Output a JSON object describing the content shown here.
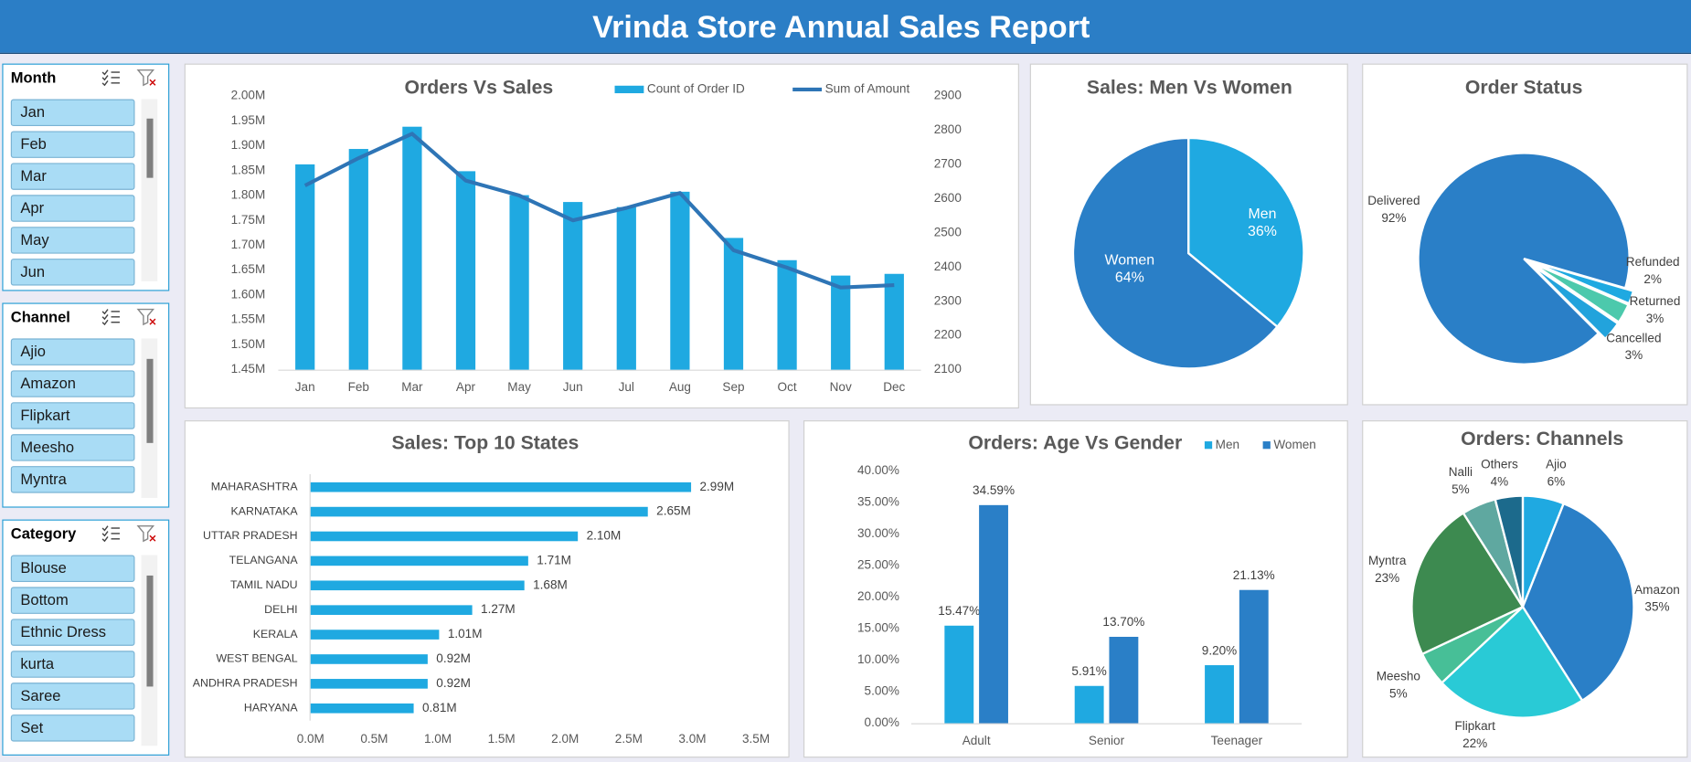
{
  "header": {
    "title": "Vrinda Store Annual Sales Report"
  },
  "slicers": [
    {
      "title": "Month",
      "items": [
        "Jan",
        "Feb",
        "Mar",
        "Apr",
        "May",
        "Jun"
      ]
    },
    {
      "title": "Channel",
      "items": [
        "Ajio",
        "Amazon",
        "Flipkart",
        "Meesho",
        "Myntra"
      ]
    },
    {
      "title": "Category",
      "items": [
        "Blouse",
        "Bottom",
        "Ethnic Dress",
        "kurta",
        "Saree",
        "Set"
      ]
    }
  ],
  "chart_data": [
    {
      "type": "combo",
      "title": "Orders Vs Sales",
      "categories": [
        "Jan",
        "Feb",
        "Mar",
        "Apr",
        "May",
        "Jun",
        "Jul",
        "Aug",
        "Sep",
        "Oct",
        "Nov",
        "Dec"
      ],
      "series": [
        {
          "name": "Count of Order ID",
          "type": "bar",
          "axis": "y2",
          "color": "#1fa9e1",
          "values": [
            2700,
            2745,
            2810,
            2680,
            2610,
            2590,
            2575,
            2620,
            2485,
            2420,
            2375,
            2380
          ]
        },
        {
          "name": "Sum of Amount",
          "type": "line",
          "color": "#2e75b6",
          "values": [
            1820000,
            1875000,
            1924000,
            1830000,
            1800000,
            1750000,
            1775000,
            1805000,
            1690000,
            1655000,
            1615000,
            1620000
          ]
        }
      ],
      "ylim": [
        1450000,
        2000000
      ],
      "yticks": [
        {
          "value": 1450000,
          "label": "1.45M"
        },
        {
          "value": 1500000,
          "label": "1.50M"
        },
        {
          "value": 1550000,
          "label": "1.55M"
        },
        {
          "value": 1600000,
          "label": "1.60M"
        },
        {
          "value": 1650000,
          "label": "1.65M"
        },
        {
          "value": 1700000,
          "label": "1.70M"
        },
        {
          "value": 1750000,
          "label": "1.75M"
        },
        {
          "value": 1800000,
          "label": "1.80M"
        },
        {
          "value": 1850000,
          "label": "1.85M"
        },
        {
          "value": 1900000,
          "label": "1.90M"
        },
        {
          "value": 1950000,
          "label": "1.95M"
        },
        {
          "value": 2000000,
          "label": "2.00M"
        }
      ],
      "y2lim": [
        2100,
        2900
      ],
      "y2ticks": [
        2100,
        2200,
        2300,
        2400,
        2500,
        2600,
        2700,
        2800,
        2900
      ]
    },
    {
      "type": "pie",
      "title": "Sales: Men Vs Women",
      "categories": [
        "Men",
        "Women"
      ],
      "values": [
        36,
        64
      ],
      "value_labels": [
        "36%",
        "64%"
      ],
      "colors": [
        "#1fa9e1",
        "#2a7fc7"
      ]
    },
    {
      "type": "pie",
      "title": "Order Status",
      "categories": [
        "Delivered",
        "Refunded",
        "Returned",
        "Cancelled"
      ],
      "values": [
        92,
        2,
        3,
        3
      ],
      "value_labels": [
        "92%",
        "2%",
        "3%",
        "3%"
      ],
      "colors": [
        "#2a7fc7",
        "#1fa9e1",
        "#4cc9ac",
        "#22a3dc"
      ]
    },
    {
      "type": "hbar",
      "title": "Sales: Top 10 States",
      "categories": [
        "MAHARASHTRA",
        "KARNATAKA",
        "UTTAR PRADESH",
        "TELANGANA",
        "TAMIL NADU",
        "DELHI",
        "KERALA",
        "WEST BENGAL",
        "ANDHRA PRADESH",
        "HARYANA"
      ],
      "values": [
        2990000,
        2650000,
        2100000,
        1710000,
        1680000,
        1270000,
        1010000,
        920000,
        920000,
        810000
      ],
      "value_labels": [
        "2.99M",
        "2.65M",
        "2.10M",
        "1.71M",
        "1.68M",
        "1.27M",
        "1.01M",
        "0.92M",
        "0.92M",
        "0.81M"
      ],
      "color": "#1fa9e1",
      "xlim": [
        0,
        3500000
      ],
      "xticks": [
        {
          "value": 0,
          "label": "0.0M"
        },
        {
          "value": 500000,
          "label": "0.5M"
        },
        {
          "value": 1000000,
          "label": "1.0M"
        },
        {
          "value": 1500000,
          "label": "1.5M"
        },
        {
          "value": 2000000,
          "label": "2.0M"
        },
        {
          "value": 2500000,
          "label": "2.5M"
        },
        {
          "value": 3000000,
          "label": "3.0M"
        },
        {
          "value": 3500000,
          "label": "3.5M"
        }
      ]
    },
    {
      "type": "bar",
      "title": "Orders: Age Vs Gender",
      "categories": [
        "Adult",
        "Senior",
        "Teenager"
      ],
      "series": [
        {
          "name": "Men",
          "color": "#1fa9e1",
          "values": [
            15.47,
            5.91,
            9.2
          ],
          "value_labels": [
            "15.47%",
            "5.91%",
            "9.20%"
          ]
        },
        {
          "name": "Women",
          "color": "#2a7fc7",
          "values": [
            34.59,
            13.7,
            21.13
          ],
          "value_labels": [
            "34.59%",
            "13.70%",
            "21.13%"
          ]
        }
      ],
      "ylim": [
        0,
        40
      ],
      "yticks": [
        {
          "value": 0,
          "label": "0.00%"
        },
        {
          "value": 5,
          "label": "5.00%"
        },
        {
          "value": 10,
          "label": "10.00%"
        },
        {
          "value": 15,
          "label": "15.00%"
        },
        {
          "value": 20,
          "label": "20.00%"
        },
        {
          "value": 25,
          "label": "25.00%"
        },
        {
          "value": 30,
          "label": "30.00%"
        },
        {
          "value": 35,
          "label": "35.00%"
        },
        {
          "value": 40,
          "label": "40.00%"
        }
      ]
    },
    {
      "type": "pie",
      "title": "Orders: Channels",
      "categories": [
        "Ajio",
        "Amazon",
        "Flipkart",
        "Meesho",
        "Myntra",
        "Nalli",
        "Others"
      ],
      "values": [
        6,
        35,
        22,
        5,
        23,
        5,
        4
      ],
      "value_labels": [
        "6%",
        "35%",
        "22%",
        "5%",
        "23%",
        "5%",
        "4%"
      ],
      "colors": [
        "#1fa9e1",
        "#2a7fc7",
        "#29cad6",
        "#47bf97",
        "#3d8a50",
        "#5fa8a0",
        "#1c6a8c"
      ]
    }
  ]
}
